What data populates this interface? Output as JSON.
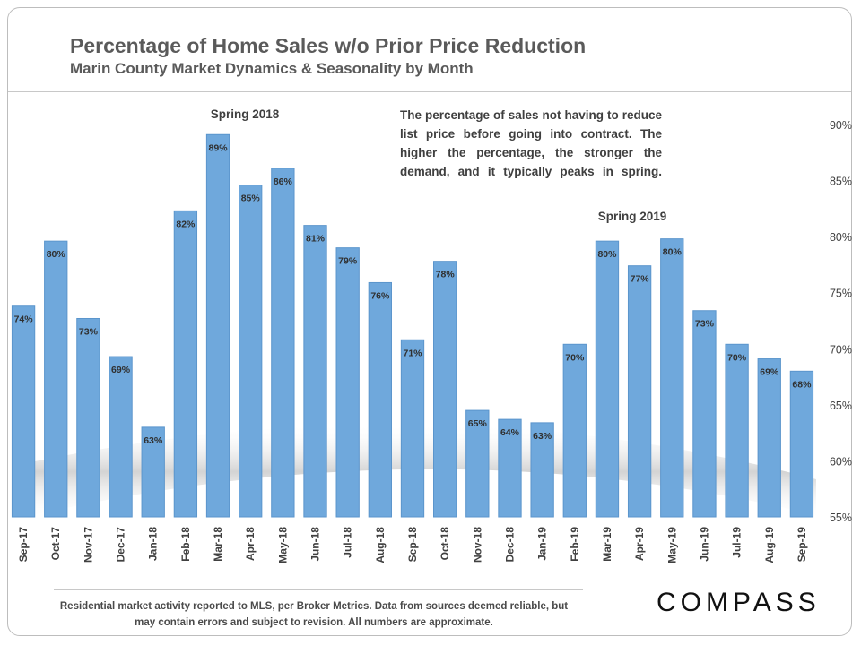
{
  "title": "Percentage of Home Sales w/o Prior Price Reduction",
  "subtitle": "Marin County Market Dynamics & Seasonality by Month",
  "annotation": "The percentage of sales not having to reduce list price before going into contract. The higher the percentage, the stronger the demand, and it typically peaks in spring.",
  "footnote": "Residential market activity reported to MLS, per Broker Metrics. Data from sources deemed reliable, but may contain errors and subject to revision. All numbers are approximate.",
  "logo": "COMPASS",
  "colors": {
    "bar": "#6fa8dc",
    "bar_stroke": "#5b95cc",
    "text": "#404040"
  },
  "chart_data": {
    "type": "bar",
    "title": "Percentage of Home Sales w/o Prior Price Reduction",
    "subtitle": "Marin County Market Dynamics & Seasonality by Month",
    "xlabel": "",
    "ylabel": "",
    "ylim": [
      55,
      92
    ],
    "yticks": [
      55,
      60,
      65,
      70,
      75,
      80,
      85,
      90
    ],
    "ytick_labels": [
      "55%",
      "60%",
      "65%",
      "70%",
      "75%",
      "80%",
      "85%",
      "90%"
    ],
    "yaxis_position": "right",
    "grid": false,
    "categories": [
      "Sep-17",
      "Oct-17",
      "Nov-17",
      "Dec-17",
      "Jan-18",
      "Feb-18",
      "Mar-18",
      "Apr-18",
      "May-18",
      "Jun-18",
      "Jul-18",
      "Aug-18",
      "Sep-18",
      "Oct-18",
      "Nov-18",
      "Dec-18",
      "Jan-19",
      "Feb-19",
      "Mar-19",
      "Apr-19",
      "May-19",
      "Jun-19",
      "Jul-19",
      "Aug-19",
      "Sep-19"
    ],
    "values": [
      73.8,
      79.6,
      72.7,
      69.3,
      63.0,
      82.3,
      89.1,
      84.6,
      86.1,
      81.0,
      79.0,
      75.9,
      70.8,
      77.8,
      64.5,
      63.7,
      63.4,
      70.4,
      79.6,
      77.4,
      79.8,
      73.4,
      70.4,
      69.1,
      68.0
    ],
    "data_labels": [
      "74%",
      "80%",
      "73%",
      "69%",
      "63%",
      "82%",
      "89%",
      "85%",
      "86%",
      "81%",
      "79%",
      "76%",
      "71%",
      "78%",
      "65%",
      "64%",
      "63%",
      "70%",
      "80%",
      "77%",
      "80%",
      "73%",
      "70%",
      "69%",
      "68%"
    ],
    "annotations": [
      {
        "text": "Spring 2018",
        "near_category": "Apr-18"
      },
      {
        "text": "Spring 2019",
        "near_category": "Apr-19"
      }
    ]
  }
}
